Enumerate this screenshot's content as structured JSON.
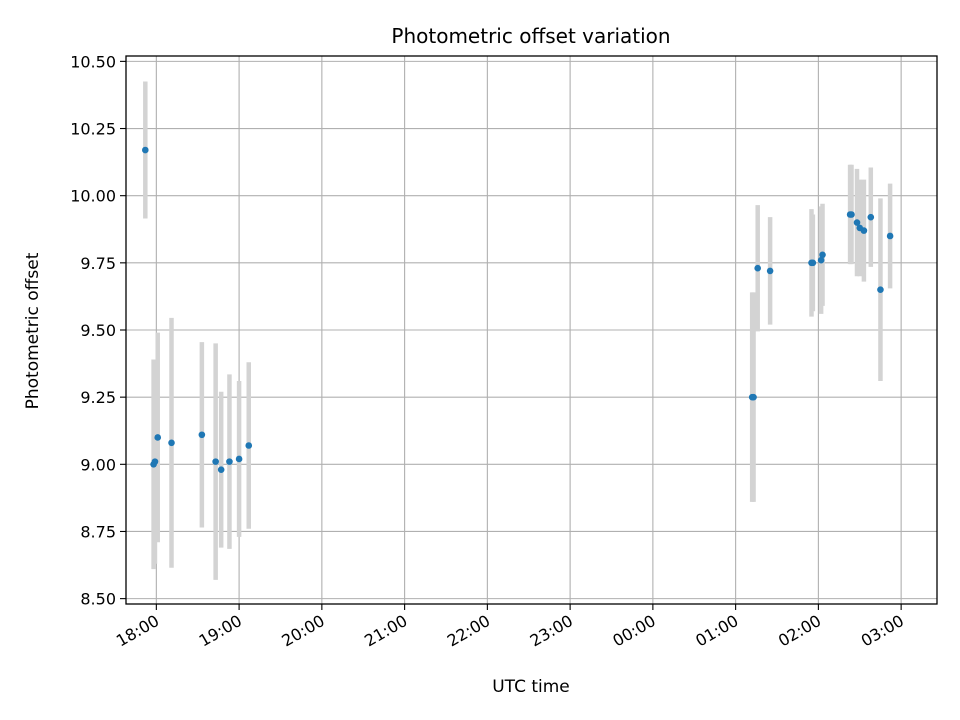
{
  "chart_data": {
    "type": "scatter",
    "title": "Photometric offset variation",
    "xlabel": "UTC time",
    "ylabel": "Photometric offset",
    "x_axis_kind": "time",
    "xlim": [
      "17:38",
      "03:26"
    ],
    "ylim": [
      8.48,
      10.52
    ],
    "grid": true,
    "x_ticks": [
      "18:00",
      "19:00",
      "20:00",
      "21:00",
      "22:00",
      "23:00",
      "00:00",
      "01:00",
      "02:00",
      "03:00"
    ],
    "y_ticks": [
      "8.50",
      "8.75",
      "9.00",
      "9.25",
      "9.50",
      "9.75",
      "10.00",
      "10.25",
      "10.50"
    ],
    "colors": {
      "points": "#1f77b4",
      "errorbars": "#d3d3d3",
      "grid": "#b0b0b0"
    },
    "series": [
      {
        "points": [
          {
            "x": "17:52",
            "y": 10.17,
            "yerr": 0.255
          },
          {
            "x": "17:58",
            "y": 9.0,
            "yerr": 0.39
          },
          {
            "x": "17:59",
            "y": 9.01,
            "yerr": 0.38
          },
          {
            "x": "18:01",
            "y": 9.1,
            "yerr": 0.39
          },
          {
            "x": "18:11",
            "y": 9.08,
            "yerr": 0.465
          },
          {
            "x": "18:33",
            "y": 9.11,
            "yerr": 0.345
          },
          {
            "x": "18:43",
            "y": 9.01,
            "yerr": 0.44
          },
          {
            "x": "18:47",
            "y": 8.98,
            "yerr": 0.29
          },
          {
            "x": "18:53",
            "y": 9.01,
            "yerr": 0.325
          },
          {
            "x": "19:00",
            "y": 9.02,
            "yerr": 0.29
          },
          {
            "x": "19:07",
            "y": 9.07,
            "yerr": 0.31
          },
          {
            "x": "01:12",
            "y": 9.25,
            "yerr": 0.39
          },
          {
            "x": "01:13",
            "y": 9.25,
            "yerr": 0.39
          },
          {
            "x": "01:16",
            "y": 9.73,
            "yerr": 0.235
          },
          {
            "x": "01:25",
            "y": 9.72,
            "yerr": 0.2
          },
          {
            "x": "01:55",
            "y": 9.75,
            "yerr": 0.2
          },
          {
            "x": "01:56",
            "y": 9.75,
            "yerr": 0.18
          },
          {
            "x": "02:02",
            "y": 9.76,
            "yerr": 0.2
          },
          {
            "x": "02:03",
            "y": 9.78,
            "yerr": 0.19
          },
          {
            "x": "02:23",
            "y": 9.93,
            "yerr": 0.185
          },
          {
            "x": "02:24",
            "y": 9.93,
            "yerr": 0.185
          },
          {
            "x": "02:28",
            "y": 9.9,
            "yerr": 0.2
          },
          {
            "x": "02:30",
            "y": 9.88,
            "yerr": 0.18
          },
          {
            "x": "02:33",
            "y": 9.87,
            "yerr": 0.19
          },
          {
            "x": "02:38",
            "y": 9.92,
            "yerr": 0.185
          },
          {
            "x": "02:45",
            "y": 9.65,
            "yerr": 0.34
          },
          {
            "x": "02:52",
            "y": 9.85,
            "yerr": 0.195
          }
        ]
      }
    ]
  }
}
